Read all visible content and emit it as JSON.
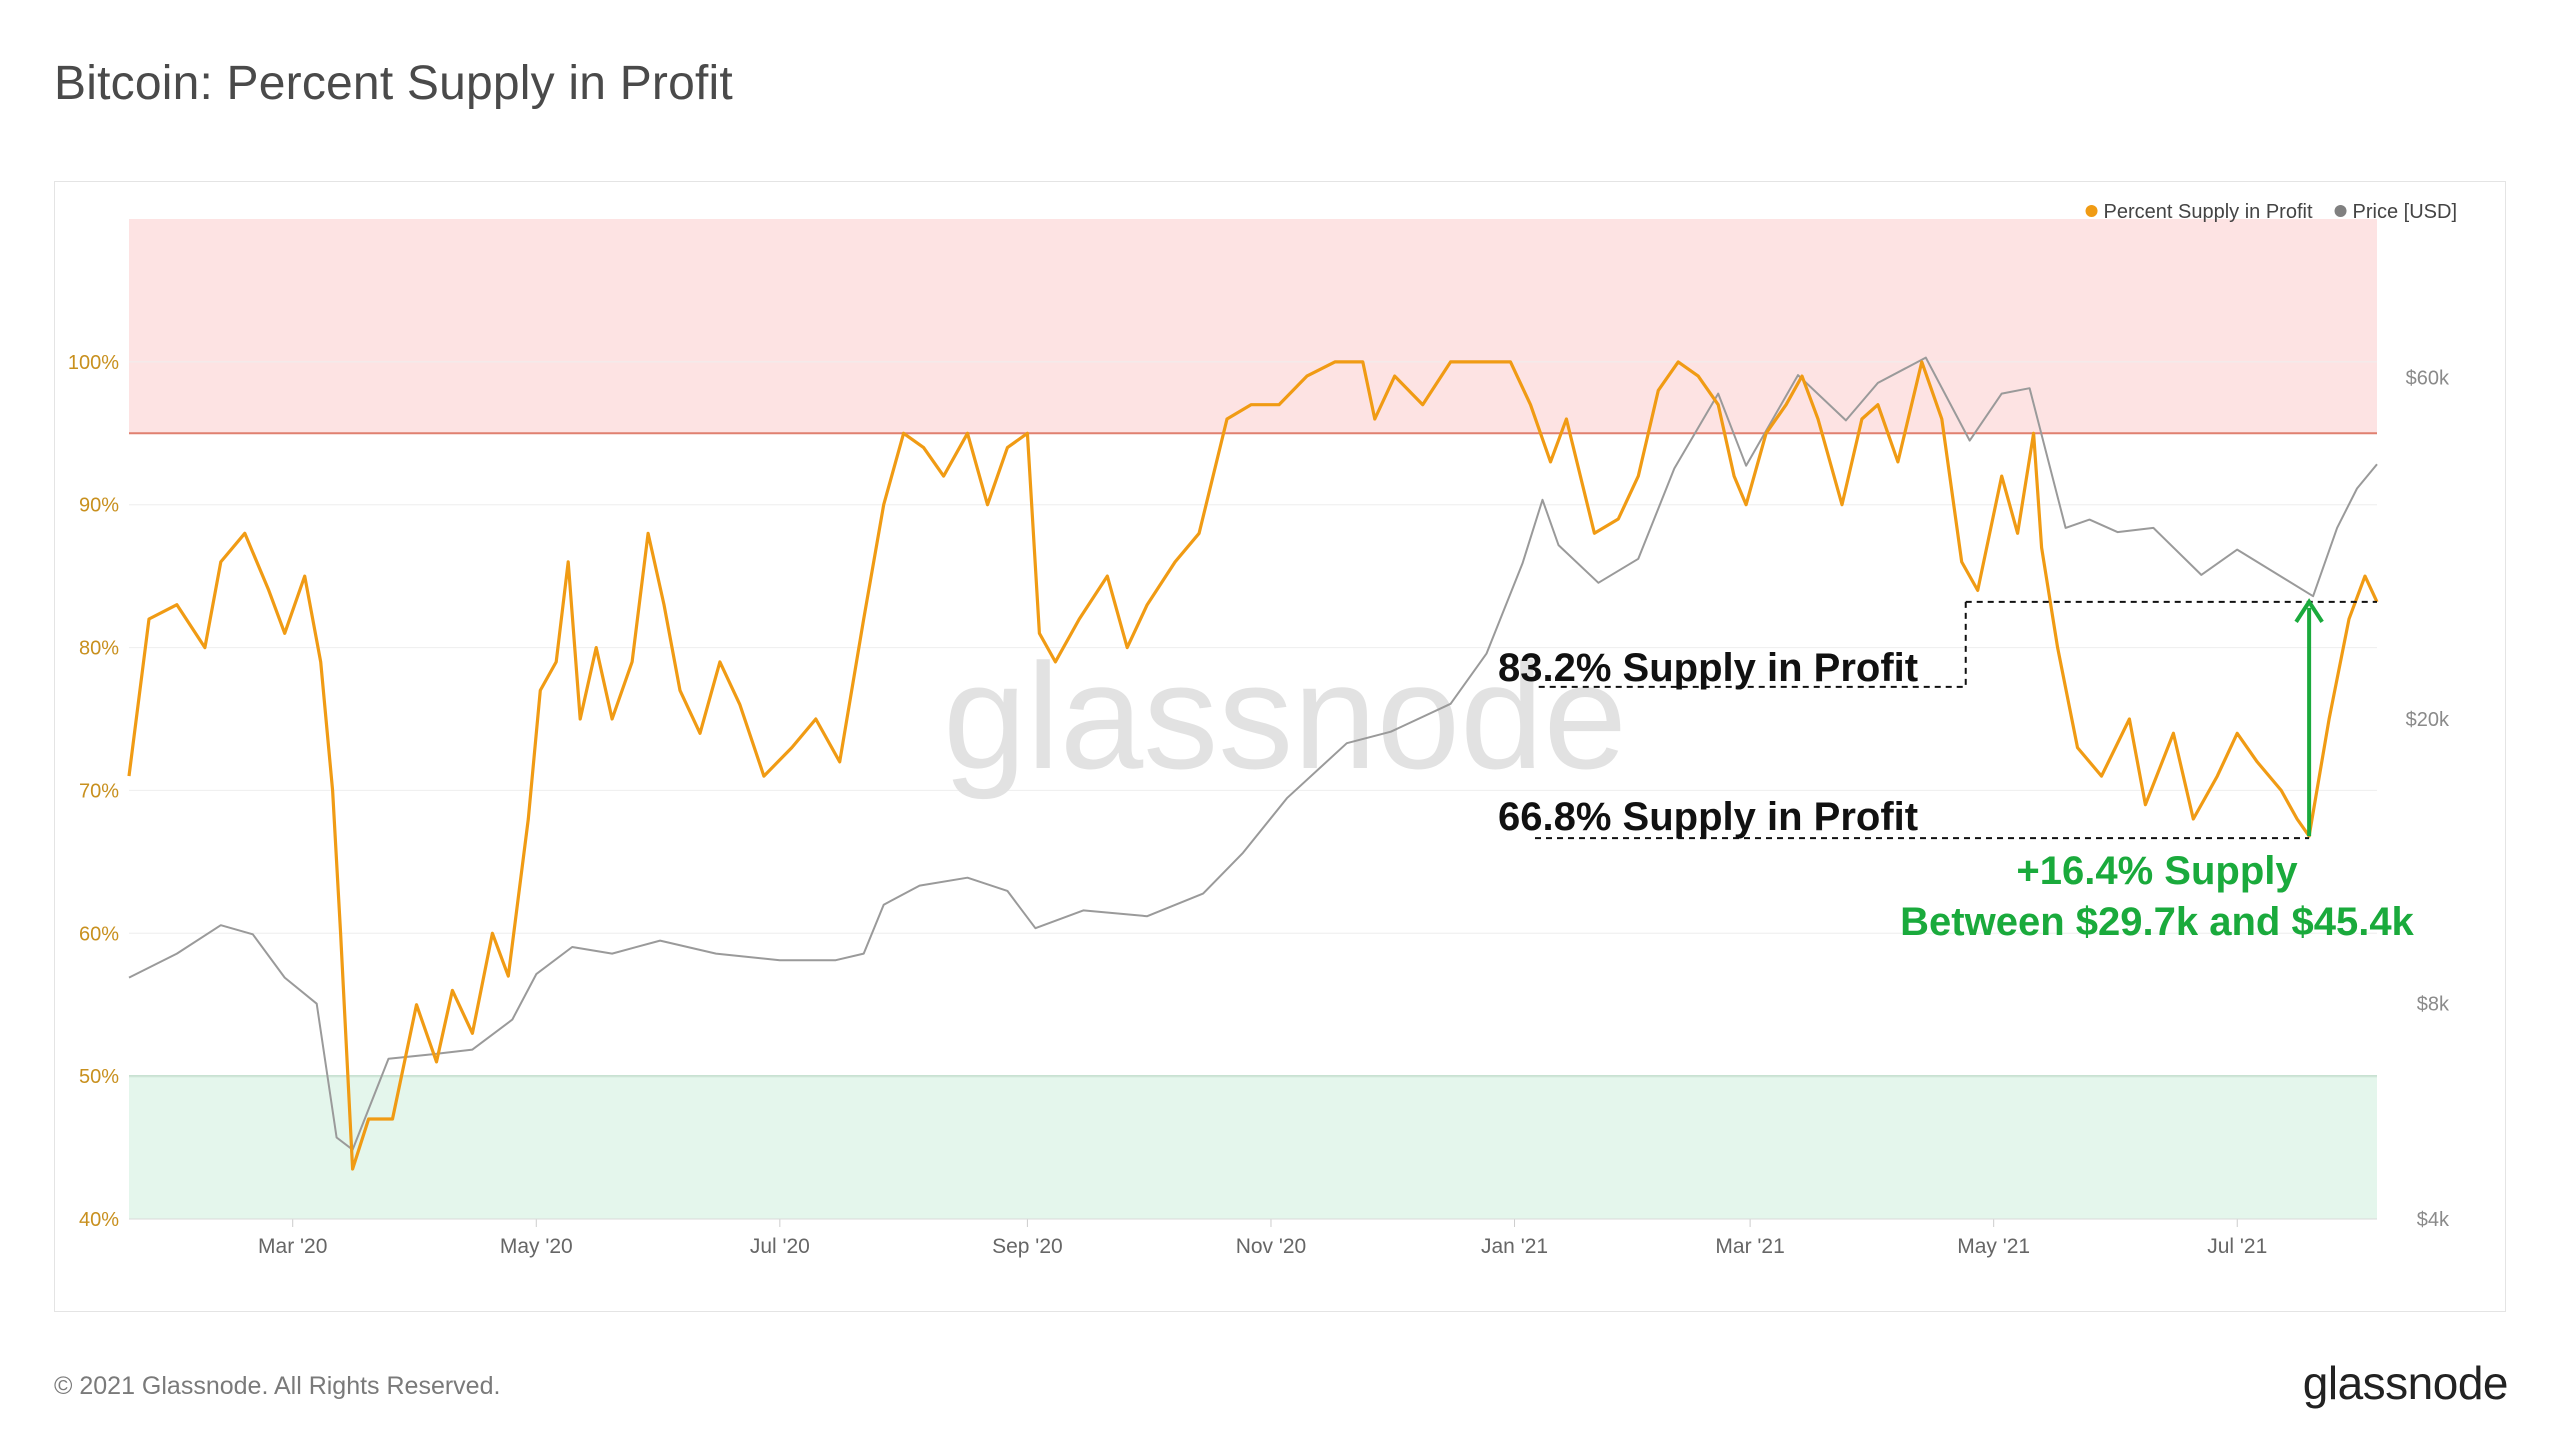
{
  "page_title": "Bitcoin: Percent Supply in Profit",
  "footer": {
    "copyright": "© 2021 Glassnode. All Rights Reserved.",
    "logo": "glassnode"
  },
  "watermark": "glassnode",
  "colors": {
    "supply_line": "#f09b14",
    "price_line": "#9a9a9a",
    "upper_zone": "#fde3e3",
    "upper_threshold": "#e08070",
    "lower_zone": "#e4f6ec",
    "lower_threshold": "#9fd3b2",
    "annotation_green": "#1aaa3c",
    "annotation_text": "#111111"
  },
  "chart_data": {
    "type": "line",
    "title": "Bitcoin: Percent Supply in Profit",
    "x_domain": [
      "2020-01-20",
      "2021-08-05"
    ],
    "x_ticks": [
      {
        "label": "Mar '20",
        "date": "2020-03-01"
      },
      {
        "label": "May '20",
        "date": "2020-05-01"
      },
      {
        "label": "Jul '20",
        "date": "2020-07-01"
      },
      {
        "label": "Sep '20",
        "date": "2020-09-01"
      },
      {
        "label": "Nov '20",
        "date": "2020-11-01"
      },
      {
        "label": "Jan '21",
        "date": "2021-01-01"
      },
      {
        "label": "Mar '21",
        "date": "2021-03-01"
      },
      {
        "label": "May '21",
        "date": "2021-05-01"
      },
      {
        "label": "Jul '21",
        "date": "2021-07-01"
      }
    ],
    "y_left": {
      "range": [
        40,
        110
      ],
      "ticks": [
        {
          "label": "40%",
          "value": 40
        },
        {
          "label": "50%",
          "value": 50
        },
        {
          "label": "60%",
          "value": 60
        },
        {
          "label": "70%",
          "value": 70
        },
        {
          "label": "80%",
          "value": 80
        },
        {
          "label": "90%",
          "value": 90
        },
        {
          "label": "100%",
          "value": 100
        }
      ]
    },
    "y_right": {
      "scale": "log",
      "range": [
        4000,
        100000
      ],
      "ticks": [
        {
          "label": "$4k",
          "value": 4000
        },
        {
          "label": "$8k",
          "value": 8000
        },
        {
          "label": "$20k",
          "value": 20000
        },
        {
          "label": "$60k",
          "value": 60000
        }
      ]
    },
    "legend": {
      "position": "top-right",
      "entries": [
        {
          "label": "Percent Supply in Profit",
          "color": "#f09b14"
        },
        {
          "label": "Price [USD]",
          "color": "#808080"
        }
      ]
    },
    "zones": [
      {
        "name": "upper",
        "from": 95,
        "to": 110
      },
      {
        "name": "lower",
        "from": 40,
        "to": 50
      }
    ],
    "series": [
      {
        "name": "Percent Supply in Profit",
        "axis": "left",
        "points": [
          [
            "2020-01-20",
            71
          ],
          [
            "2020-01-25",
            82
          ],
          [
            "2020-02-01",
            83
          ],
          [
            "2020-02-08",
            80
          ],
          [
            "2020-02-12",
            86
          ],
          [
            "2020-02-18",
            88
          ],
          [
            "2020-02-24",
            84
          ],
          [
            "2020-02-28",
            81
          ],
          [
            "2020-03-04",
            85
          ],
          [
            "2020-03-08",
            79
          ],
          [
            "2020-03-11",
            70
          ],
          [
            "2020-03-13",
            60
          ],
          [
            "2020-03-16",
            43.5
          ],
          [
            "2020-03-20",
            47
          ],
          [
            "2020-03-26",
            47
          ],
          [
            "2020-04-01",
            55
          ],
          [
            "2020-04-06",
            51
          ],
          [
            "2020-04-10",
            56
          ],
          [
            "2020-04-15",
            53
          ],
          [
            "2020-04-20",
            60
          ],
          [
            "2020-04-24",
            57
          ],
          [
            "2020-04-29",
            68
          ],
          [
            "2020-05-02",
            77
          ],
          [
            "2020-05-06",
            79
          ],
          [
            "2020-05-09",
            86
          ],
          [
            "2020-05-12",
            75
          ],
          [
            "2020-05-16",
            80
          ],
          [
            "2020-05-20",
            75
          ],
          [
            "2020-05-25",
            79
          ],
          [
            "2020-05-29",
            88
          ],
          [
            "2020-06-02",
            83
          ],
          [
            "2020-06-06",
            77
          ],
          [
            "2020-06-11",
            74
          ],
          [
            "2020-06-16",
            79
          ],
          [
            "2020-06-21",
            76
          ],
          [
            "2020-06-27",
            71
          ],
          [
            "2020-07-04",
            73
          ],
          [
            "2020-07-10",
            75
          ],
          [
            "2020-07-16",
            72
          ],
          [
            "2020-07-22",
            82
          ],
          [
            "2020-07-27",
            90
          ],
          [
            "2020-08-01",
            95
          ],
          [
            "2020-08-06",
            94
          ],
          [
            "2020-08-11",
            92
          ],
          [
            "2020-08-17",
            95
          ],
          [
            "2020-08-22",
            90
          ],
          [
            "2020-08-27",
            94
          ],
          [
            "2020-09-01",
            95
          ],
          [
            "2020-09-04",
            81
          ],
          [
            "2020-09-08",
            79
          ],
          [
            "2020-09-14",
            82
          ],
          [
            "2020-09-21",
            85
          ],
          [
            "2020-09-26",
            80
          ],
          [
            "2020-10-01",
            83
          ],
          [
            "2020-10-08",
            86
          ],
          [
            "2020-10-14",
            88
          ],
          [
            "2020-10-21",
            96
          ],
          [
            "2020-10-27",
            97
          ],
          [
            "2020-11-03",
            97
          ],
          [
            "2020-11-10",
            99
          ],
          [
            "2020-11-17",
            100
          ],
          [
            "2020-11-24",
            100
          ],
          [
            "2020-11-27",
            96
          ],
          [
            "2020-12-02",
            99
          ],
          [
            "2020-12-09",
            97
          ],
          [
            "2020-12-16",
            100
          ],
          [
            "2020-12-23",
            100
          ],
          [
            "2020-12-31",
            100
          ],
          [
            "2021-01-05",
            97
          ],
          [
            "2021-01-10",
            93
          ],
          [
            "2021-01-14",
            96
          ],
          [
            "2021-01-21",
            88
          ],
          [
            "2021-01-27",
            89
          ],
          [
            "2021-02-01",
            92
          ],
          [
            "2021-02-06",
            98
          ],
          [
            "2021-02-11",
            100
          ],
          [
            "2021-02-16",
            99
          ],
          [
            "2021-02-21",
            97
          ],
          [
            "2021-02-25",
            92
          ],
          [
            "2021-02-28",
            90
          ],
          [
            "2021-03-05",
            95
          ],
          [
            "2021-03-10",
            97
          ],
          [
            "2021-03-14",
            99
          ],
          [
            "2021-03-18",
            96
          ],
          [
            "2021-03-24",
            90
          ],
          [
            "2021-03-29",
            96
          ],
          [
            "2021-04-02",
            97
          ],
          [
            "2021-04-07",
            93
          ],
          [
            "2021-04-13",
            100
          ],
          [
            "2021-04-18",
            96
          ],
          [
            "2021-04-23",
            86
          ],
          [
            "2021-04-27",
            84
          ],
          [
            "2021-05-03",
            92
          ],
          [
            "2021-05-07",
            88
          ],
          [
            "2021-05-11",
            95
          ],
          [
            "2021-05-13",
            87
          ],
          [
            "2021-05-17",
            80
          ],
          [
            "2021-05-22",
            73
          ],
          [
            "2021-05-28",
            71
          ],
          [
            "2021-06-04",
            75
          ],
          [
            "2021-06-08",
            69
          ],
          [
            "2021-06-15",
            74
          ],
          [
            "2021-06-20",
            68
          ],
          [
            "2021-06-26",
            71
          ],
          [
            "2021-07-01",
            74
          ],
          [
            "2021-07-06",
            72
          ],
          [
            "2021-07-12",
            70
          ],
          [
            "2021-07-16",
            68
          ],
          [
            "2021-07-19",
            66.8
          ],
          [
            "2021-07-24",
            75
          ],
          [
            "2021-07-29",
            82
          ],
          [
            "2021-08-02",
            85
          ],
          [
            "2021-08-05",
            83.2
          ]
        ]
      },
      {
        "name": "Price [USD]",
        "axis": "right",
        "points": [
          [
            "2020-01-20",
            8700
          ],
          [
            "2020-02-01",
            9400
          ],
          [
            "2020-02-12",
            10300
          ],
          [
            "2020-02-20",
            10000
          ],
          [
            "2020-02-28",
            8700
          ],
          [
            "2020-03-07",
            8000
          ],
          [
            "2020-03-12",
            5200
          ],
          [
            "2020-03-16",
            5000
          ],
          [
            "2020-03-25",
            6700
          ],
          [
            "2020-04-05",
            6800
          ],
          [
            "2020-04-15",
            6900
          ],
          [
            "2020-04-25",
            7600
          ],
          [
            "2020-05-01",
            8800
          ],
          [
            "2020-05-10",
            9600
          ],
          [
            "2020-05-20",
            9400
          ],
          [
            "2020-06-01",
            9800
          ],
          [
            "2020-06-15",
            9400
          ],
          [
            "2020-07-01",
            9200
          ],
          [
            "2020-07-15",
            9200
          ],
          [
            "2020-07-22",
            9400
          ],
          [
            "2020-07-27",
            11000
          ],
          [
            "2020-08-05",
            11700
          ],
          [
            "2020-08-17",
            12000
          ],
          [
            "2020-08-27",
            11500
          ],
          [
            "2020-09-03",
            10200
          ],
          [
            "2020-09-15",
            10800
          ],
          [
            "2020-10-01",
            10600
          ],
          [
            "2020-10-15",
            11400
          ],
          [
            "2020-10-25",
            13000
          ],
          [
            "2020-11-05",
            15500
          ],
          [
            "2020-11-20",
            18500
          ],
          [
            "2020-12-01",
            19200
          ],
          [
            "2020-12-16",
            21000
          ],
          [
            "2020-12-25",
            24700
          ],
          [
            "2021-01-03",
            33000
          ],
          [
            "2021-01-08",
            40500
          ],
          [
            "2021-01-12",
            35000
          ],
          [
            "2021-01-22",
            31000
          ],
          [
            "2021-02-01",
            33500
          ],
          [
            "2021-02-10",
            44800
          ],
          [
            "2021-02-21",
            57000
          ],
          [
            "2021-02-28",
            45200
          ],
          [
            "2021-03-13",
            60500
          ],
          [
            "2021-03-25",
            52300
          ],
          [
            "2021-04-02",
            59000
          ],
          [
            "2021-04-14",
            64000
          ],
          [
            "2021-04-25",
            49000
          ],
          [
            "2021-05-03",
            57000
          ],
          [
            "2021-05-10",
            58000
          ],
          [
            "2021-05-19",
            37000
          ],
          [
            "2021-05-25",
            38000
          ],
          [
            "2021-06-01",
            36500
          ],
          [
            "2021-06-10",
            37000
          ],
          [
            "2021-06-22",
            31800
          ],
          [
            "2021-07-01",
            34500
          ],
          [
            "2021-07-20",
            29700
          ],
          [
            "2021-07-26",
            37000
          ],
          [
            "2021-07-31",
            42000
          ],
          [
            "2021-08-05",
            45400
          ]
        ]
      }
    ],
    "annotations": {
      "upper_label": "83.2% Supply in Profit",
      "upper_value": 83.2,
      "lower_label": "66.8% Supply in Profit",
      "lower_value": 66.8,
      "delta_line1": "+16.4% Supply",
      "delta_line2": "Between $29.7k and $45.4k",
      "bracket_start_date": "2021-04-24",
      "arrow_date": "2021-07-19",
      "end_date": "2021-08-05"
    }
  }
}
